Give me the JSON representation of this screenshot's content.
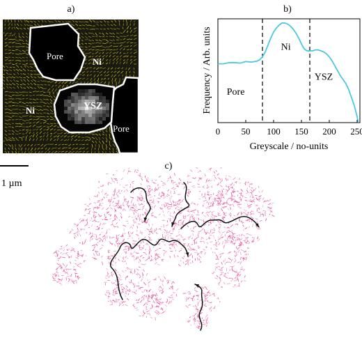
{
  "panels": {
    "a": "a)",
    "b": "b)",
    "c": "c)"
  },
  "micrograph": {
    "labels": [
      "Pore",
      "Ni",
      "YSZ",
      "Ni",
      "Pore"
    ]
  },
  "scale_bar": {
    "label": "1 µm"
  },
  "chart_data": {
    "type": "line",
    "xlabel": "Greyscale / no-units",
    "ylabel": "Frequency / Arb. units",
    "xlim": [
      0,
      255
    ],
    "xticks": [
      0,
      50,
      100,
      150,
      200,
      250
    ],
    "y_ticks_shown": false,
    "grid": false,
    "series": [
      {
        "color": "#49c8e0",
        "x": [
          0,
          10,
          20,
          30,
          40,
          50,
          60,
          70,
          75,
          80,
          85,
          90,
          95,
          100,
          105,
          110,
          115,
          120,
          125,
          130,
          135,
          140,
          145,
          150,
          155,
          160,
          165,
          170,
          175,
          180,
          185,
          190,
          195,
          200,
          205,
          210,
          215,
          220,
          225,
          230,
          235,
          240,
          245,
          250,
          252
        ],
        "y": [
          0.59,
          0.59,
          0.6,
          0.6,
          0.6,
          0.61,
          0.61,
          0.62,
          0.63,
          0.66,
          0.71,
          0.78,
          0.85,
          0.91,
          0.95,
          0.98,
          1.0,
          1.0,
          0.99,
          0.97,
          0.94,
          0.9,
          0.85,
          0.79,
          0.74,
          0.72,
          0.72,
          0.72,
          0.73,
          0.73,
          0.72,
          0.71,
          0.69,
          0.66,
          0.62,
          0.57,
          0.52,
          0.47,
          0.43,
          0.39,
          0.33,
          0.25,
          0.17,
          0.06,
          0.0
        ]
      }
    ],
    "vlines": [
      80,
      165
    ],
    "region_labels": [
      "Pore",
      "Ni",
      "YSZ"
    ]
  },
  "colors": {
    "flux_yellow": "#c8bd22",
    "flux_pink": "#e0509a",
    "curve": "#49c8e0",
    "arrows": "#111111"
  }
}
